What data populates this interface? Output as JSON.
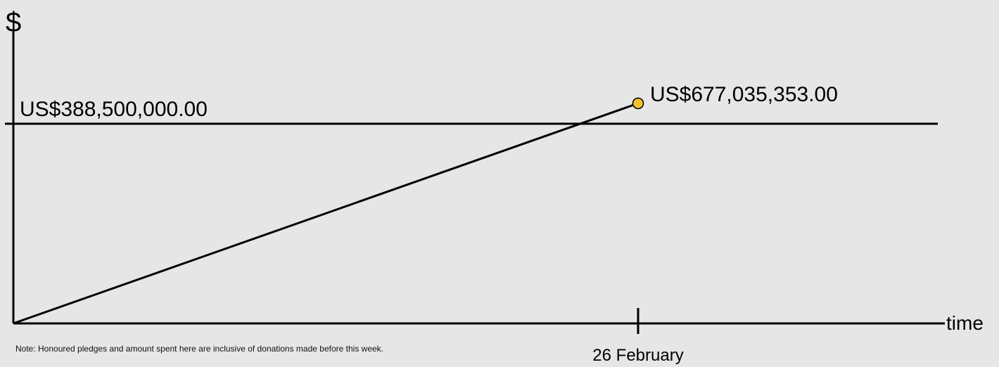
{
  "chart_data": {
    "type": "line",
    "ylabel": "$",
    "xlabel": "time",
    "x_ticks": [
      "26 February"
    ],
    "series": [
      {
        "values": [
          {
            "x": "start",
            "y": 0
          },
          {
            "x": "26 February",
            "y": 677035353.0
          }
        ],
        "end_label": "US$677,035,353.00",
        "end_marker_color": "#f5c22f"
      }
    ],
    "reference_lines": [
      {
        "y": 388500000.0,
        "label": "US$388,500,000.00"
      }
    ],
    "grid": false,
    "colors": {
      "line": "#000000",
      "marker": "#f5c22f",
      "background": "#e6e6e6"
    }
  },
  "note": "Note: Honoured pledges and amount spent here are inclusive of donations made before this week."
}
